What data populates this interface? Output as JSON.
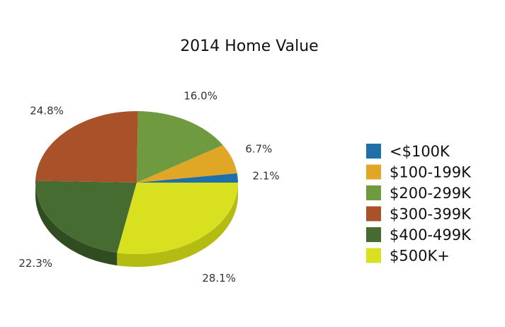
{
  "chart_data": {
    "type": "pie",
    "title": "2014 Home Value",
    "legend_position": "right",
    "slices": [
      {
        "label": "<$100K",
        "value": 2.1,
        "display": "2.1%",
        "color": "#1f6fa8",
        "side": "#16557f"
      },
      {
        "label": "$100-199K",
        "value": 6.7,
        "display": "6.7%",
        "color": "#e0a626",
        "side": "#b2831d"
      },
      {
        "label": "$200-299K",
        "value": 16.0,
        "display": "16.0%",
        "color": "#6f9a3f",
        "side": "#557a2e"
      },
      {
        "label": "$300-399K",
        "value": 24.8,
        "display": "24.8%",
        "color": "#a9522a",
        "side": "#83401f"
      },
      {
        "label": "$400-499K",
        "value": 22.3,
        "display": "22.3%",
        "color": "#466c31",
        "side": "#2f4d20"
      },
      {
        "label": "$500K+",
        "value": 28.1,
        "display": "28.1%",
        "color": "#d8e01f",
        "side": "#b4bb12"
      }
    ]
  }
}
